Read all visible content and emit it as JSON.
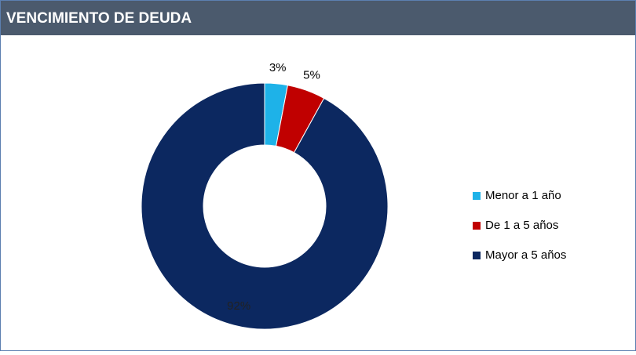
{
  "chart_data": {
    "type": "pie",
    "title": "VENCIMIENTO DE DEUDA",
    "categories": [
      "Menor a 1 año",
      "De 1 a 5 años",
      "Mayor a 5 años"
    ],
    "values": [
      3,
      5,
      92
    ],
    "value_labels": [
      "3%",
      "5%",
      "92%"
    ],
    "colors": [
      "#1eb2e8",
      "#c00000",
      "#0c2860"
    ],
    "donut": true,
    "legend": "right"
  }
}
